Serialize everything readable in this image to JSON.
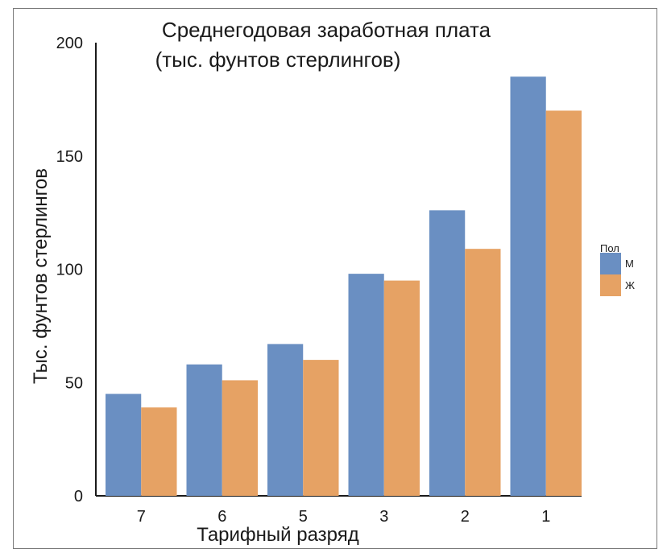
{
  "chart_data": {
    "type": "bar",
    "title": "Среднегодовая заработная плата",
    "subtitle": "(тыс. фунтов стерлингов)",
    "xlabel": "Тарифный разряд",
    "ylabel": "Тыс. фунтов стерлингов",
    "categories": [
      "7",
      "6",
      "5",
      "3",
      "2",
      "1"
    ],
    "series": [
      {
        "name": "М",
        "color": "#6a8fc2",
        "values": [
          45,
          58,
          67,
          98,
          126,
          185
        ]
      },
      {
        "name": "Ж",
        "color": "#e6a264",
        "values": [
          39,
          51,
          60,
          95,
          109,
          170
        ]
      }
    ],
    "ylim": [
      0,
      200
    ],
    "yticks": [
      "0",
      "50",
      "100",
      "150",
      "200"
    ],
    "grid": false,
    "legend": {
      "title": "Пол",
      "placement": "right"
    }
  }
}
